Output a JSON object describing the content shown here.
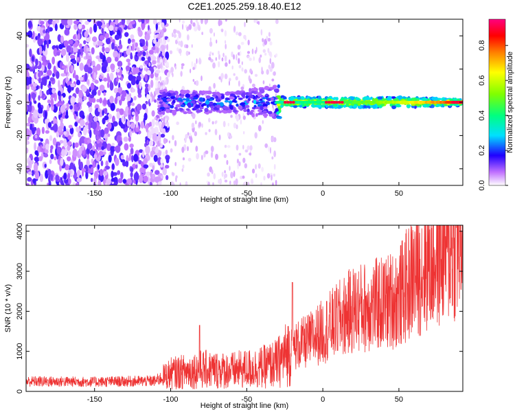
{
  "title": "C2E1.2025.259.18.40.E12",
  "chart_data": [
    {
      "type": "heatmap",
      "xlabel": "Height of straight line (km)",
      "ylabel": "Frequency (Hz)",
      "xlim": [
        -195,
        92
      ],
      "ylim": [
        -50,
        50
      ],
      "xticks": [
        -150,
        -100,
        -50,
        0,
        50
      ],
      "yticks": [
        -40,
        -20,
        0,
        20,
        40
      ],
      "colorbar": {
        "label": "Normalized spectral amplitude",
        "range": [
          0,
          0.95
        ],
        "ticks": [
          0.0,
          0.2,
          0.4,
          0.6,
          0.8
        ]
      },
      "features": {
        "broadband_noise_region_km": [
          -195,
          -108
        ],
        "scattered_speckle_region_km": [
          -108,
          -30
        ],
        "main_band_start_km": -108,
        "main_band_center_hz": 0,
        "main_band_halfwidth_hz_at_start": 7,
        "main_band_halfwidth_hz_at_end": 2,
        "peak_amplitude_locations_km": [
          -22,
          5,
          10,
          88
        ]
      }
    },
    {
      "type": "line",
      "xlabel": "Height of straight line (km)",
      "ylabel": "SNR (10 * v/v)",
      "xlim": [
        -195,
        92
      ],
      "ylim": [
        0,
        4150
      ],
      "xticks": [
        -150,
        -100,
        -50,
        0,
        50
      ],
      "yticks": [
        0,
        1000,
        2000,
        3000,
        4000
      ],
      "color": "#ee3333",
      "trend": {
        "x": [
          -195,
          -150,
          -110,
          -100,
          -80,
          -60,
          -40,
          -30,
          -20,
          -10,
          0,
          20,
          40,
          50,
          60,
          80,
          92
        ],
        "y": [
          250,
          240,
          260,
          450,
          550,
          520,
          600,
          700,
          1100,
          1250,
          1500,
          2050,
          2200,
          2350,
          2900,
          3550,
          3850
        ]
      },
      "spikes": [
        {
          "x": -81,
          "y": 1650
        },
        {
          "x": -20,
          "y": 2720
        },
        {
          "x": 8,
          "y": 2500
        }
      ]
    }
  ]
}
